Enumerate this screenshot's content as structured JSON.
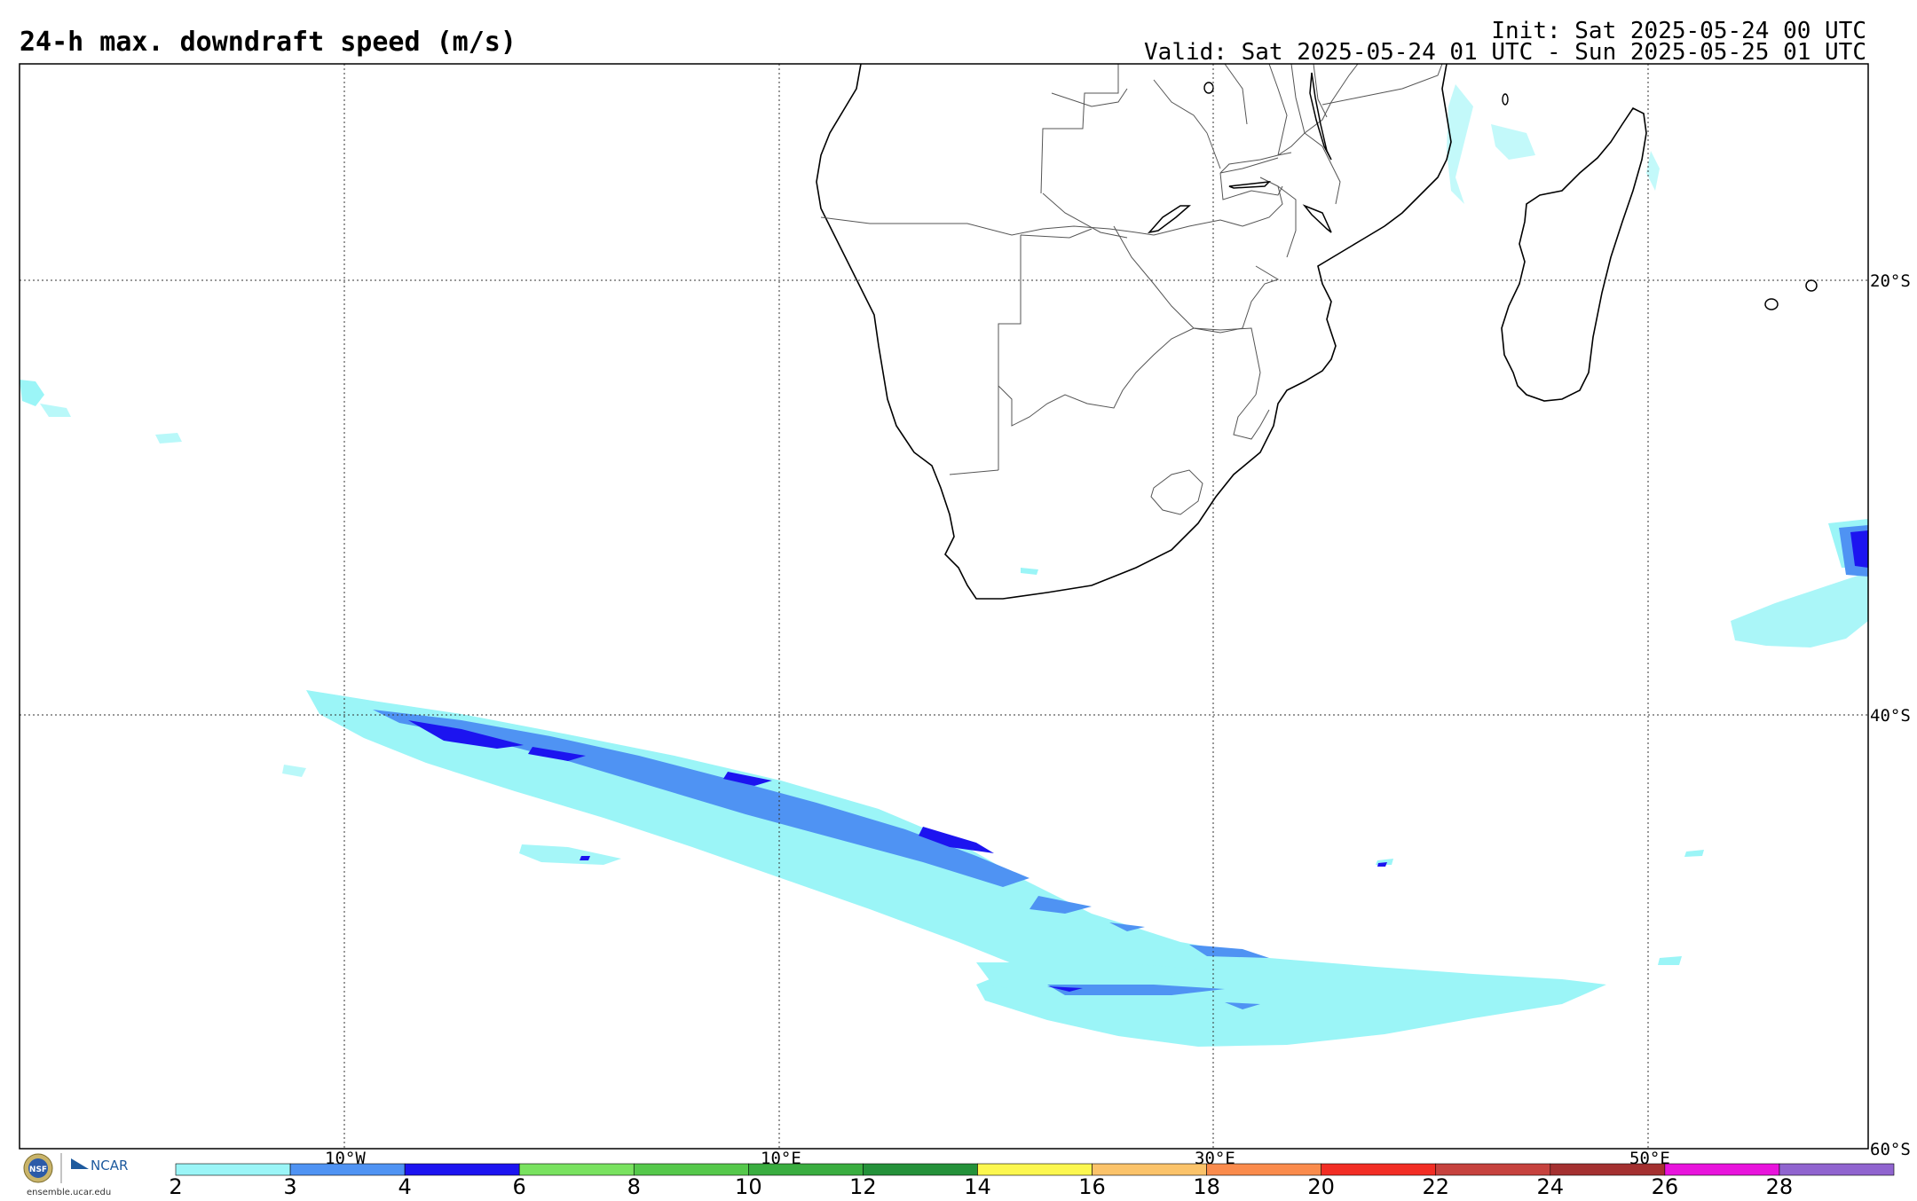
{
  "header": {
    "title": "24-h max. downdraft speed (m/s)",
    "init": "Init: Sat 2025-05-24 00 UTC",
    "valid": "Valid: Sat 2025-05-24 01 UTC - Sun 2025-05-25 01 UTC"
  },
  "map": {
    "region": "Southern Africa and South Atlantic / SW Indian Ocean",
    "lon_labels": [
      "10°W",
      "10°E",
      "30°E",
      "50°E"
    ],
    "lat_labels": [
      "20°S",
      "40°S",
      "60°S"
    ],
    "field_colors": {
      "c2": "#9bf5f7",
      "c3": "#4f93f3",
      "c4": "#1c14f0"
    }
  },
  "colorbar": {
    "ticks": [
      "2",
      "3",
      "4",
      "6",
      "8",
      "10",
      "12",
      "14",
      "16",
      "18",
      "20",
      "22",
      "24",
      "26",
      "28"
    ],
    "colors": [
      "#9bf5f7",
      "#4f93f3",
      "#1c14f0",
      "#79e25f",
      "#55c84b",
      "#3aad40",
      "#24913a",
      "#fcf74f",
      "#fbc36a",
      "#fa8b4c",
      "#f22d24",
      "#c6423e",
      "#a43030",
      "#e814dc",
      "#9064cf"
    ]
  },
  "footer": {
    "logo_nsf": "NSF",
    "logo_ncar": "NCAR",
    "site": "ensemble.ucar.edu"
  }
}
